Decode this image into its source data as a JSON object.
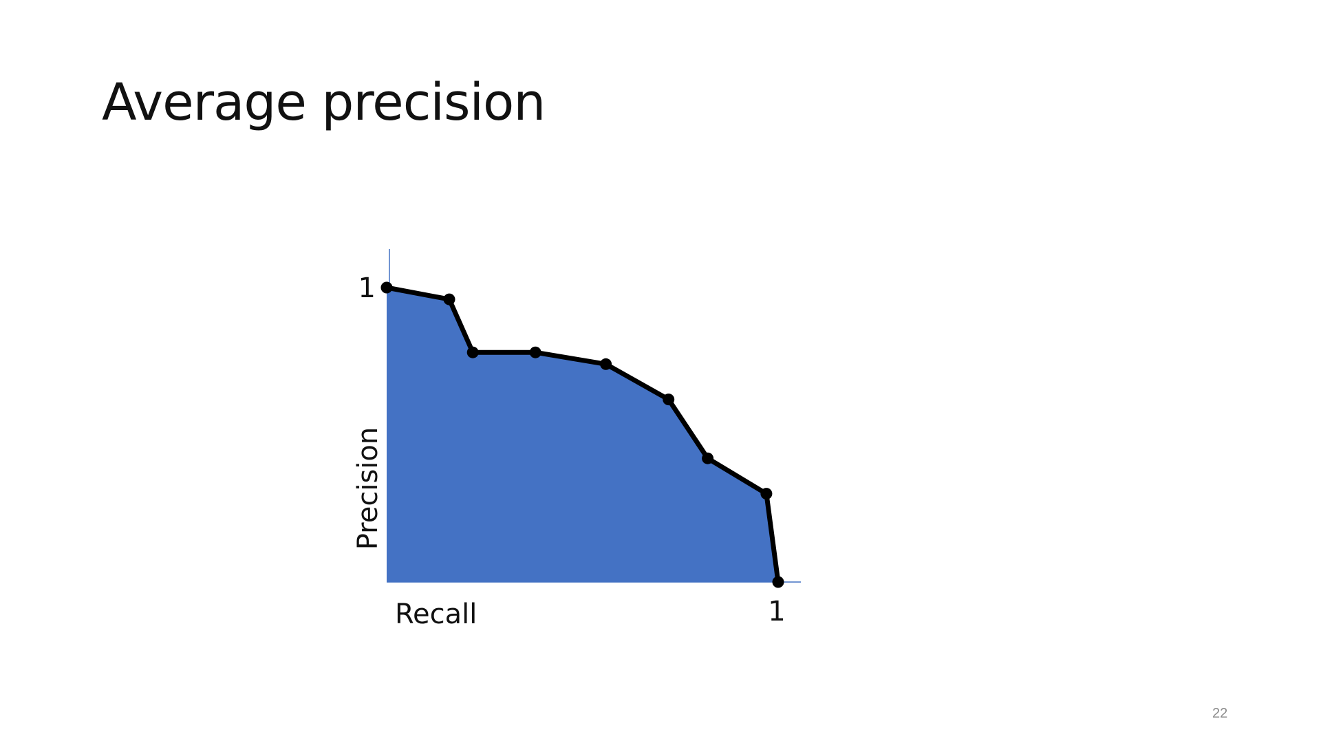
{
  "slide": {
    "title": "Average precision",
    "page_number": "22"
  },
  "colors": {
    "area_fill": "#4472C4",
    "axis_line": "#4472C4",
    "curve": "#000000"
  },
  "chart_data": {
    "type": "area",
    "title": "",
    "xlabel": "Recall",
    "ylabel": "Precision",
    "x_tick_label": "1",
    "y_tick_label": "1",
    "xlim": [
      0,
      1
    ],
    "ylim": [
      0,
      1
    ],
    "grid": false,
    "legend": "none",
    "points": [
      {
        "x": 0.0,
        "y": 1.0
      },
      {
        "x": 0.16,
        "y": 0.96
      },
      {
        "x": 0.22,
        "y": 0.78
      },
      {
        "x": 0.38,
        "y": 0.78
      },
      {
        "x": 0.56,
        "y": 0.74
      },
      {
        "x": 0.72,
        "y": 0.62
      },
      {
        "x": 0.82,
        "y": 0.42
      },
      {
        "x": 0.97,
        "y": 0.3
      },
      {
        "x": 1.0,
        "y": 0.0
      }
    ]
  }
}
